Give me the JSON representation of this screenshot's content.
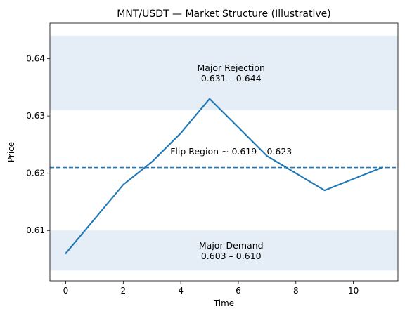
{
  "chart_data": {
    "type": "line",
    "title": "MNT/USDT — Market Structure (Illustrative)",
    "xlabel": "Time",
    "ylabel": "Price",
    "xlim": [
      -0.55,
      11.55
    ],
    "ylim": [
      0.6012,
      0.6462
    ],
    "x_ticks": [
      0,
      2,
      4,
      6,
      8,
      10
    ],
    "y_ticks": [
      0.61,
      0.62,
      0.63,
      0.64
    ],
    "grid": false,
    "series": [
      {
        "color": "#1f77b4",
        "x": [
          0,
          1,
          2,
          3,
          4,
          5,
          6,
          7,
          8,
          9,
          10,
          11
        ],
        "y": [
          0.606,
          0.612,
          0.618,
          0.622,
          0.627,
          0.633,
          0.628,
          0.623,
          0.62,
          0.617,
          0.619,
          0.621
        ]
      }
    ],
    "bands": [
      {
        "name": "resistance",
        "from": 0.631,
        "to": 0.644,
        "color": "#e5eef7",
        "label_line1": "Major Rejection",
        "label_line2": "0.631 – 0.644",
        "label_x": 5.75,
        "label_y": 0.6375
      },
      {
        "name": "support",
        "from": 0.603,
        "to": 0.61,
        "color": "#e5eef7",
        "label_line1": "Major Demand",
        "label_line2": "0.603 – 0.610",
        "label_x": 5.75,
        "label_y": 0.6065
      }
    ],
    "reference_line": {
      "y": 0.621,
      "style": "dashed",
      "color": "#1f77b4",
      "label": "Flip Region ~ 0.619 – 0.623",
      "label_x": 5.75,
      "label_y": 0.6233
    }
  }
}
